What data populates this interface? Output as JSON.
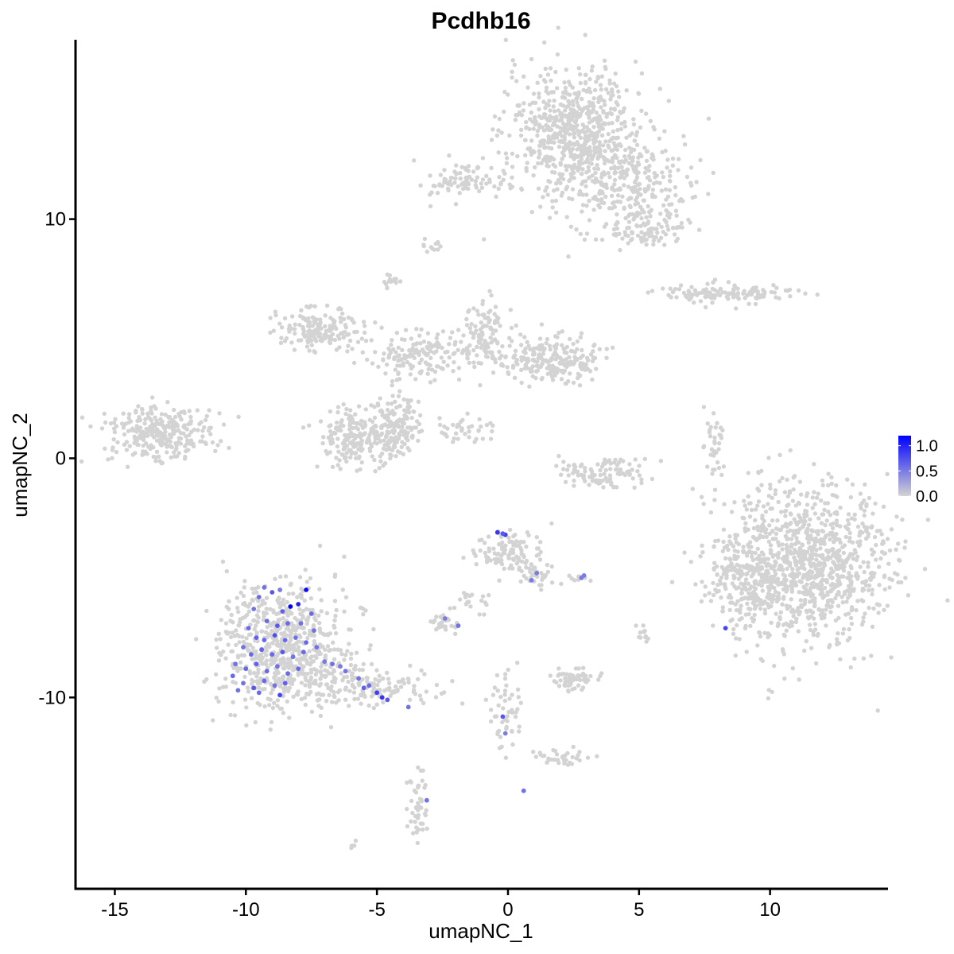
{
  "chart_data": {
    "type": "scatter",
    "title": "Pcdhb16",
    "xlabel": "umapNC_1",
    "ylabel": "umapNC_2",
    "xlim": [
      -16.5,
      14.5
    ],
    "ylim": [
      -18,
      17.5
    ],
    "x_ticks": [
      {
        "value": -15,
        "label": "-15"
      },
      {
        "value": -10,
        "label": "-10"
      },
      {
        "value": -5,
        "label": "-5"
      },
      {
        "value": 0,
        "label": "0"
      },
      {
        "value": 5,
        "label": "5"
      },
      {
        "value": 10,
        "label": "10"
      }
    ],
    "y_ticks": [
      {
        "value": -10,
        "label": "-10"
      },
      {
        "value": 0,
        "label": "0"
      },
      {
        "value": 10,
        "label": "10"
      }
    ],
    "grid": false,
    "legend": {
      "placement": "right",
      "type": "colorbar",
      "min": 0.0,
      "max": 1.2,
      "low_color": "#d3d3d3",
      "high_color": "#0000ff",
      "ticks": [
        {
          "value": 1.0,
          "label": "1.0"
        },
        {
          "value": 0.5,
          "label": "0.5"
        },
        {
          "value": 0.0,
          "label": "0.0"
        }
      ]
    },
    "point_color_unexpressed": "#d3d3d3",
    "clusters": [
      {
        "id": "cluster-top",
        "center": [
          2.6,
          13.7
        ],
        "spread": [
          1.3,
          1.3
        ],
        "count": 650
      },
      {
        "id": "cluster-top-tail",
        "center": [
          4.4,
          11.5
        ],
        "spread": [
          1.3,
          0.9
        ],
        "count": 260
      },
      {
        "id": "cluster-top-left-arm",
        "center": [
          -1.6,
          11.6
        ],
        "spread": [
          1.0,
          0.35
        ],
        "count": 90
      },
      {
        "id": "cluster-top-lower-right",
        "center": [
          5.4,
          9.6
        ],
        "spread": [
          0.7,
          0.4
        ],
        "count": 90
      },
      {
        "id": "cluster-small-top",
        "center": [
          -2.9,
          8.9
        ],
        "spread": [
          0.2,
          0.12
        ],
        "count": 12
      },
      {
        "id": "cluster-small-mid",
        "center": [
          -4.5,
          7.3
        ],
        "spread": [
          0.2,
          0.2
        ],
        "count": 14
      },
      {
        "id": "cluster-right-strip",
        "center": [
          8.3,
          6.9
        ],
        "spread": [
          1.2,
          0.2
        ],
        "count": 120
      },
      {
        "id": "cluster-arm-left",
        "center": [
          -7.2,
          5.4
        ],
        "spread": [
          0.9,
          0.45
        ],
        "count": 160
      },
      {
        "id": "cluster-arm-mid",
        "center": [
          -3.3,
          4.3
        ],
        "spread": [
          1.0,
          0.5
        ],
        "count": 140
      },
      {
        "id": "cluster-arm-upper",
        "center": [
          -0.8,
          5.1
        ],
        "spread": [
          0.5,
          0.7
        ],
        "count": 120
      },
      {
        "id": "cluster-arm-right",
        "center": [
          1.7,
          4.1
        ],
        "spread": [
          0.9,
          0.45
        ],
        "count": 220
      },
      {
        "id": "cluster-bottom-lobe-left",
        "center": [
          -5.9,
          0.8
        ],
        "spread": [
          0.6,
          0.6
        ],
        "count": 170
      },
      {
        "id": "cluster-bottom-lobe-right",
        "center": [
          -4.4,
          1.3
        ],
        "spread": [
          0.45,
          0.7
        ],
        "count": 160
      },
      {
        "id": "cluster-center-diag",
        "center": [
          -1.8,
          1.2
        ],
        "spread": [
          0.6,
          0.3
        ],
        "count": 40
      },
      {
        "id": "cluster-left-isolated",
        "center": [
          -13.3,
          1.0
        ],
        "spread": [
          1.0,
          0.6
        ],
        "count": 280
      },
      {
        "id": "cluster-crescent",
        "center": [
          3.4,
          -0.6
        ],
        "spread": [
          0.9,
          0.35
        ],
        "count": 100
      },
      {
        "id": "cluster-thin-right",
        "center": [
          7.9,
          0.3
        ],
        "spread": [
          0.2,
          0.9
        ],
        "count": 35
      },
      {
        "id": "cluster-large-right",
        "center": [
          11.3,
          -4.4
        ],
        "spread": [
          1.6,
          1.6
        ],
        "count": 1100
      },
      {
        "id": "cluster-large-right-flank",
        "center": [
          8.9,
          -5.4
        ],
        "spread": [
          0.6,
          0.9
        ],
        "count": 120
      },
      {
        "id": "cluster-center-small",
        "center": [
          0.1,
          -3.9
        ],
        "spread": [
          0.7,
          0.4
        ],
        "count": 110
      },
      {
        "id": "cluster-center-tail",
        "center": [
          1.1,
          -4.9
        ],
        "spread": [
          0.3,
          0.3
        ],
        "count": 30
      },
      {
        "id": "cluster-dot-a",
        "center": [
          2.7,
          -5.0
        ],
        "spread": [
          0.2,
          0.1
        ],
        "count": 10
      },
      {
        "id": "cluster-dot-b",
        "center": [
          -2.5,
          -6.9
        ],
        "spread": [
          0.35,
          0.2
        ],
        "count": 30
      },
      {
        "id": "cluster-diag-left",
        "center": [
          -1.3,
          -5.9
        ],
        "spread": [
          0.4,
          0.4
        ],
        "count": 20
      },
      {
        "id": "cluster-mid-right-small",
        "center": [
          2.5,
          -9.3
        ],
        "spread": [
          0.4,
          0.25
        ],
        "count": 60
      },
      {
        "id": "cluster-mid-right-small2",
        "center": [
          5.1,
          -7.3
        ],
        "spread": [
          0.15,
          0.2
        ],
        "count": 12
      },
      {
        "id": "cluster-bottom-string",
        "center": [
          0.0,
          -10.6
        ],
        "spread": [
          0.35,
          1.0
        ],
        "count": 50
      },
      {
        "id": "cluster-bottom-right-string",
        "center": [
          2.1,
          -12.5
        ],
        "spread": [
          0.5,
          0.2
        ],
        "count": 35
      },
      {
        "id": "cluster-bottom-small",
        "center": [
          -3.4,
          -14.6
        ],
        "spread": [
          0.2,
          0.8
        ],
        "count": 45
      },
      {
        "id": "cluster-bottom-dot",
        "center": [
          -5.9,
          -16.2
        ],
        "spread": [
          0.12,
          0.08
        ],
        "count": 5
      },
      {
        "id": "cluster-expressing-main",
        "center": [
          -8.6,
          -7.9
        ],
        "spread": [
          1.2,
          1.3
        ],
        "count": 650
      },
      {
        "id": "cluster-expressing-tail",
        "center": [
          -5.4,
          -9.5
        ],
        "spread": [
          1.2,
          0.4
        ],
        "count": 150
      }
    ],
    "expressing_points": [
      {
        "x": -8.3,
        "y": -6.2,
        "v": 1.2
      },
      {
        "x": -7.7,
        "y": -5.5,
        "v": 1.15
      },
      {
        "x": -8.0,
        "y": -6.1,
        "v": 1.0
      },
      {
        "x": -9.0,
        "y": -5.6,
        "v": 0.7
      },
      {
        "x": -8.6,
        "y": -6.4,
        "v": 0.65
      },
      {
        "x": -9.5,
        "y": -5.8,
        "v": 0.6
      },
      {
        "x": -9.7,
        "y": -6.3,
        "v": 0.55
      },
      {
        "x": -9.2,
        "y": -6.8,
        "v": 0.6
      },
      {
        "x": -8.8,
        "y": -7.0,
        "v": 0.7
      },
      {
        "x": -8.4,
        "y": -6.9,
        "v": 0.6
      },
      {
        "x": -7.9,
        "y": -6.9,
        "v": 0.55
      },
      {
        "x": -9.9,
        "y": -7.1,
        "v": 0.6
      },
      {
        "x": -9.6,
        "y": -7.5,
        "v": 0.65
      },
      {
        "x": -9.3,
        "y": -7.6,
        "v": 0.6
      },
      {
        "x": -8.9,
        "y": -7.4,
        "v": 0.75
      },
      {
        "x": -8.5,
        "y": -7.6,
        "v": 0.6
      },
      {
        "x": -8.1,
        "y": -7.5,
        "v": 0.55
      },
      {
        "x": -7.7,
        "y": -7.7,
        "v": 0.6
      },
      {
        "x": -10.1,
        "y": -7.9,
        "v": 0.55
      },
      {
        "x": -9.8,
        "y": -8.2,
        "v": 0.6
      },
      {
        "x": -9.4,
        "y": -8.0,
        "v": 0.65
      },
      {
        "x": -9.0,
        "y": -8.2,
        "v": 0.6
      },
      {
        "x": -8.6,
        "y": -8.1,
        "v": 0.7
      },
      {
        "x": -8.2,
        "y": -8.3,
        "v": 0.55
      },
      {
        "x": -7.8,
        "y": -8.1,
        "v": 0.6
      },
      {
        "x": -7.3,
        "y": -7.9,
        "v": 0.55
      },
      {
        "x": -10.4,
        "y": -8.6,
        "v": 0.55
      },
      {
        "x": -10.0,
        "y": -8.8,
        "v": 0.6
      },
      {
        "x": -9.6,
        "y": -8.6,
        "v": 0.65
      },
      {
        "x": -9.2,
        "y": -8.9,
        "v": 0.6
      },
      {
        "x": -8.8,
        "y": -8.7,
        "v": 0.55
      },
      {
        "x": -8.4,
        "y": -9.0,
        "v": 0.6
      },
      {
        "x": -8.0,
        "y": -8.8,
        "v": 0.6
      },
      {
        "x": -10.5,
        "y": -9.1,
        "v": 0.6
      },
      {
        "x": -10.1,
        "y": -9.4,
        "v": 0.55
      },
      {
        "x": -9.7,
        "y": -9.6,
        "v": 0.7
      },
      {
        "x": -9.3,
        "y": -9.3,
        "v": 0.6
      },
      {
        "x": -8.9,
        "y": -9.5,
        "v": 0.55
      },
      {
        "x": -8.5,
        "y": -9.4,
        "v": 0.65
      },
      {
        "x": -9.5,
        "y": -9.8,
        "v": 0.6
      },
      {
        "x": -8.7,
        "y": -9.9,
        "v": 0.8
      },
      {
        "x": -10.3,
        "y": -9.7,
        "v": 0.55
      },
      {
        "x": -7.4,
        "y": -7.2,
        "v": 0.55
      },
      {
        "x": -7.0,
        "y": -8.5,
        "v": 0.5
      },
      {
        "x": -6.7,
        "y": -8.6,
        "v": 0.55
      },
      {
        "x": -6.4,
        "y": -8.7,
        "v": 0.5
      },
      {
        "x": -6.2,
        "y": -8.9,
        "v": 0.55
      },
      {
        "x": -5.7,
        "y": -9.2,
        "v": 0.55
      },
      {
        "x": -5.3,
        "y": -9.5,
        "v": 0.6
      },
      {
        "x": -5.0,
        "y": -9.8,
        "v": 0.85
      },
      {
        "x": -4.8,
        "y": -10.0,
        "v": 0.9
      },
      {
        "x": -4.6,
        "y": -10.1,
        "v": 0.7
      },
      {
        "x": -5.5,
        "y": -9.6,
        "v": 0.65
      },
      {
        "x": -3.8,
        "y": -10.4,
        "v": 0.55
      },
      {
        "x": -7.5,
        "y": -6.5,
        "v": 0.6
      },
      {
        "x": -8.7,
        "y": -5.5,
        "v": 0.5
      },
      {
        "x": -9.3,
        "y": -5.4,
        "v": 0.55
      },
      {
        "x": -0.4,
        "y": -3.1,
        "v": 0.9
      },
      {
        "x": -0.1,
        "y": -3.2,
        "v": 0.85
      },
      {
        "x": -0.2,
        "y": -3.15,
        "v": 0.7
      },
      {
        "x": 1.1,
        "y": -4.8,
        "v": 0.5
      },
      {
        "x": 0.9,
        "y": -5.1,
        "v": 0.5
      },
      {
        "x": 2.9,
        "y": -4.9,
        "v": 0.5
      },
      {
        "x": 2.8,
        "y": -5.0,
        "v": 0.5
      },
      {
        "x": -2.4,
        "y": -6.7,
        "v": 0.5
      },
      {
        "x": -1.9,
        "y": -7.0,
        "v": 0.55
      },
      {
        "x": -0.2,
        "y": -10.8,
        "v": 0.7
      },
      {
        "x": -0.1,
        "y": -11.5,
        "v": 0.5
      },
      {
        "x": 0.6,
        "y": -13.9,
        "v": 0.55
      },
      {
        "x": -3.1,
        "y": -14.3,
        "v": 0.55
      },
      {
        "x": 8.3,
        "y": -7.1,
        "v": 0.8
      }
    ]
  }
}
